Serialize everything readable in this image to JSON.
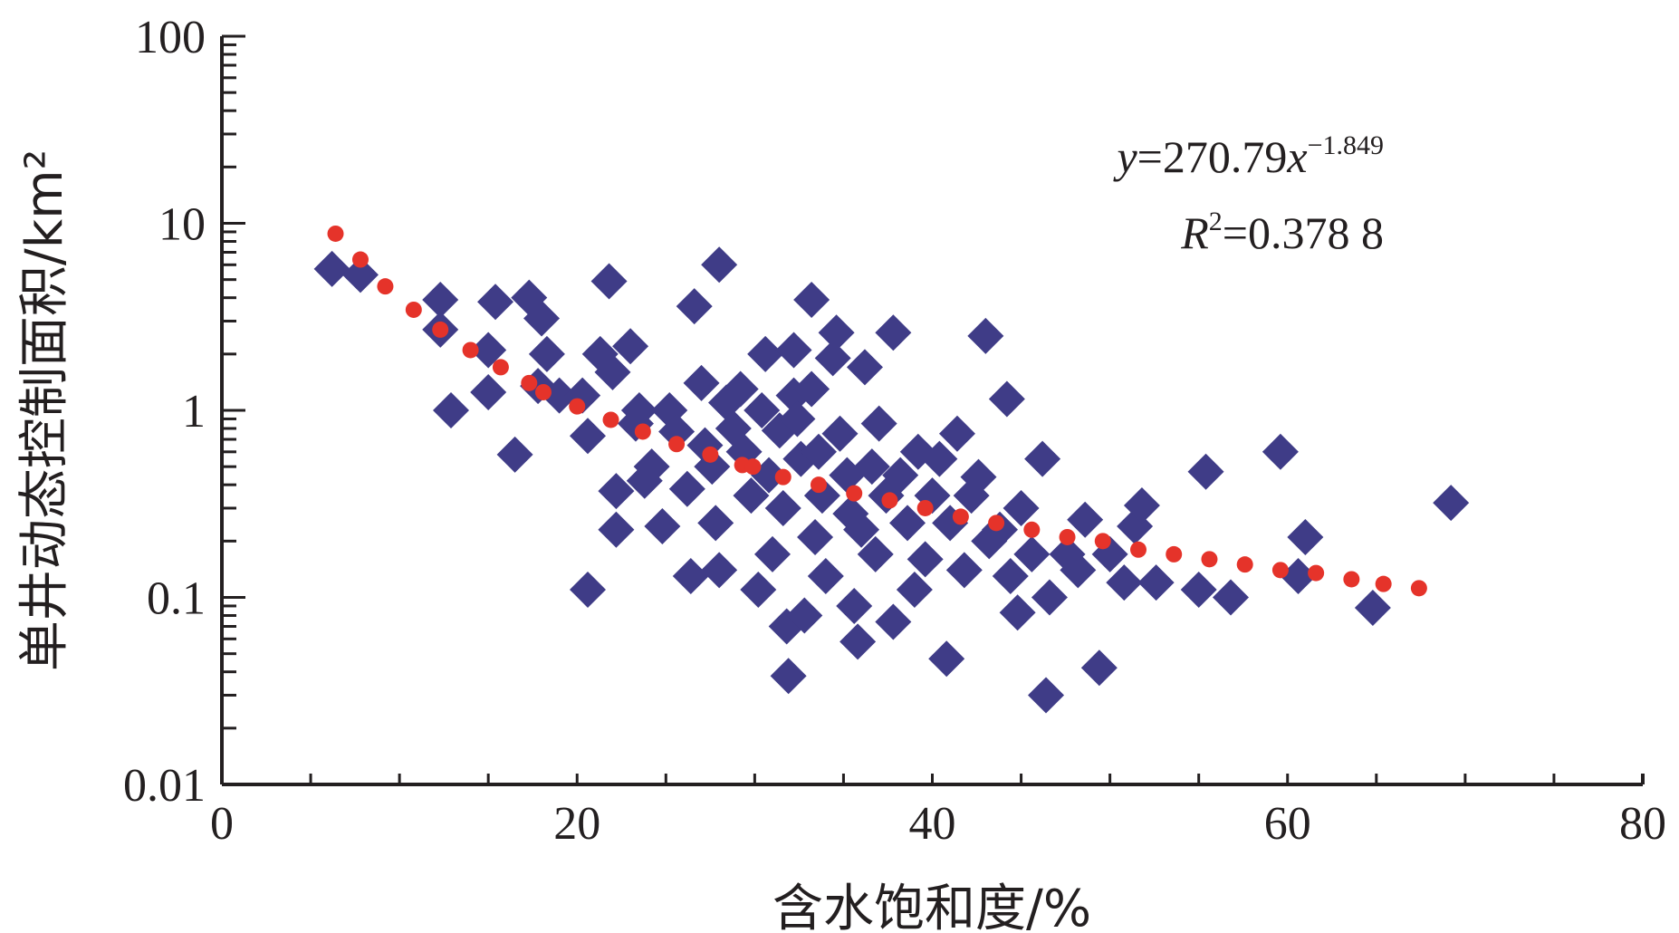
{
  "chart_data": {
    "type": "scatter",
    "title": "",
    "xlabel": "含水饱和度/%",
    "ylabel": "单井动态控制面积/km²",
    "xlim": [
      0,
      80
    ],
    "ylim": [
      0.01,
      100
    ],
    "yscale": "log",
    "xticks": [
      "0",
      "20",
      "40",
      "60",
      "80"
    ],
    "yticks": [
      "0.01",
      "0.1",
      "1",
      "10",
      "100"
    ],
    "grid": false,
    "equation": {
      "line1_prefix": "y",
      "line1_mid": "=270.79",
      "line1_var": "x",
      "line1_exp": "−1.849",
      "line2_prefix": "R",
      "line2_exp": "2",
      "line2_rest": "=0.378 8"
    },
    "colors": {
      "scatter": "#3f3c87",
      "fit": "#e5332a",
      "axis": "#231f20"
    },
    "series": [
      {
        "kind": "observed",
        "marker": "diamond",
        "points": [
          [
            6.2,
            5.7
          ],
          [
            7.8,
            5.3
          ],
          [
            12.3,
            3.9
          ],
          [
            12.3,
            2.7
          ],
          [
            12.9,
            1.0
          ],
          [
            15.4,
            3.8
          ],
          [
            15.0,
            2.1
          ],
          [
            15.0,
            1.25
          ],
          [
            16.5,
            0.58
          ],
          [
            17.3,
            4.0
          ],
          [
            18.0,
            3.1
          ],
          [
            18.3,
            2.0
          ],
          [
            17.8,
            1.35
          ],
          [
            19.0,
            1.2
          ],
          [
            20.3,
            1.2
          ],
          [
            20.6,
            0.73
          ],
          [
            20.6,
            0.11
          ],
          [
            21.3,
            2.0
          ],
          [
            21.8,
            4.9
          ],
          [
            22.0,
            1.6
          ],
          [
            22.2,
            0.37
          ],
          [
            22.2,
            0.23
          ],
          [
            23.0,
            2.2
          ],
          [
            23.3,
            0.85
          ],
          [
            23.5,
            1.0
          ],
          [
            23.8,
            0.42
          ],
          [
            24.2,
            0.5
          ],
          [
            24.8,
            0.24
          ],
          [
            25.2,
            1.0
          ],
          [
            25.6,
            0.77
          ],
          [
            26.2,
            0.38
          ],
          [
            26.4,
            0.13
          ],
          [
            26.6,
            3.6
          ],
          [
            27.0,
            1.4
          ],
          [
            27.2,
            0.65
          ],
          [
            27.6,
            0.5
          ],
          [
            27.8,
            0.25
          ],
          [
            28.0,
            6.0
          ],
          [
            28.0,
            0.14
          ],
          [
            28.4,
            1.1
          ],
          [
            28.8,
            0.8
          ],
          [
            29.2,
            1.3
          ],
          [
            29.4,
            0.6
          ],
          [
            29.8,
            0.35
          ],
          [
            30.2,
            0.11
          ],
          [
            30.4,
            1.0
          ],
          [
            30.6,
            2.0
          ],
          [
            30.8,
            0.45
          ],
          [
            31.0,
            0.17
          ],
          [
            31.4,
            0.78
          ],
          [
            31.6,
            0.3
          ],
          [
            31.8,
            0.07
          ],
          [
            31.9,
            0.038
          ],
          [
            32.2,
            2.1
          ],
          [
            32.2,
            1.2
          ],
          [
            32.4,
            0.9
          ],
          [
            32.6,
            0.55
          ],
          [
            32.8,
            0.08
          ],
          [
            33.2,
            1.3
          ],
          [
            33.2,
            3.9
          ],
          [
            33.4,
            0.21
          ],
          [
            33.6,
            0.6
          ],
          [
            33.8,
            0.35
          ],
          [
            34.0,
            0.13
          ],
          [
            34.4,
            1.9
          ],
          [
            34.6,
            2.6
          ],
          [
            34.8,
            0.75
          ],
          [
            35.2,
            0.45
          ],
          [
            35.4,
            0.28
          ],
          [
            35.6,
            0.09
          ],
          [
            35.8,
            0.058
          ],
          [
            36.0,
            0.23
          ],
          [
            36.2,
            1.7
          ],
          [
            36.6,
            0.5
          ],
          [
            36.8,
            0.17
          ],
          [
            37.0,
            0.85
          ],
          [
            37.4,
            0.35
          ],
          [
            37.8,
            2.6
          ],
          [
            37.8,
            0.074
          ],
          [
            38.2,
            0.45
          ],
          [
            38.6,
            0.25
          ],
          [
            39.0,
            0.11
          ],
          [
            39.2,
            0.6
          ],
          [
            39.6,
            0.16
          ],
          [
            40.0,
            0.35
          ],
          [
            40.4,
            0.55
          ],
          [
            40.8,
            0.047
          ],
          [
            41.0,
            0.25
          ],
          [
            41.4,
            0.75
          ],
          [
            41.8,
            0.14
          ],
          [
            42.2,
            0.35
          ],
          [
            42.6,
            0.44
          ],
          [
            43.0,
            2.5
          ],
          [
            43.2,
            0.2
          ],
          [
            43.8,
            0.23
          ],
          [
            44.2,
            1.15
          ],
          [
            44.4,
            0.13
          ],
          [
            44.8,
            0.083
          ],
          [
            45.0,
            0.3
          ],
          [
            45.6,
            0.17
          ],
          [
            46.2,
            0.55
          ],
          [
            46.4,
            0.03
          ],
          [
            46.6,
            0.1
          ],
          [
            47.6,
            0.17
          ],
          [
            48.2,
            0.14
          ],
          [
            48.6,
            0.26
          ],
          [
            49.4,
            0.042
          ],
          [
            50.0,
            0.17
          ],
          [
            50.8,
            0.12
          ],
          [
            51.4,
            0.24
          ],
          [
            51.8,
            0.31
          ],
          [
            52.6,
            0.12
          ],
          [
            55.0,
            0.11
          ],
          [
            55.4,
            0.47
          ],
          [
            56.8,
            0.1
          ],
          [
            59.6,
            0.6
          ],
          [
            60.6,
            0.13
          ],
          [
            61.0,
            0.21
          ],
          [
            64.8,
            0.088
          ],
          [
            69.2,
            0.32
          ]
        ]
      },
      {
        "kind": "fit",
        "marker": "dot",
        "points": [
          [
            6.4,
            8.8
          ],
          [
            7.8,
            6.4
          ],
          [
            9.2,
            4.6
          ],
          [
            10.8,
            3.45
          ],
          [
            12.3,
            2.7
          ],
          [
            14.0,
            2.1
          ],
          [
            15.7,
            1.7
          ],
          [
            17.3,
            1.4
          ],
          [
            18.1,
            1.25
          ],
          [
            20.0,
            1.05
          ],
          [
            21.9,
            0.89
          ],
          [
            23.7,
            0.77
          ],
          [
            25.6,
            0.66
          ],
          [
            27.5,
            0.58
          ],
          [
            29.3,
            0.51
          ],
          [
            29.9,
            0.5
          ],
          [
            31.6,
            0.44
          ],
          [
            33.6,
            0.4
          ],
          [
            35.6,
            0.36
          ],
          [
            37.6,
            0.33
          ],
          [
            39.6,
            0.3
          ],
          [
            41.6,
            0.27
          ],
          [
            43.6,
            0.25
          ],
          [
            45.6,
            0.23
          ],
          [
            47.6,
            0.21
          ],
          [
            49.6,
            0.2
          ],
          [
            51.6,
            0.18
          ],
          [
            53.6,
            0.17
          ],
          [
            55.6,
            0.16
          ],
          [
            57.6,
            0.15
          ],
          [
            59.6,
            0.14
          ],
          [
            61.6,
            0.135
          ],
          [
            63.6,
            0.125
          ],
          [
            65.4,
            0.118
          ],
          [
            67.4,
            0.112
          ]
        ]
      }
    ]
  }
}
